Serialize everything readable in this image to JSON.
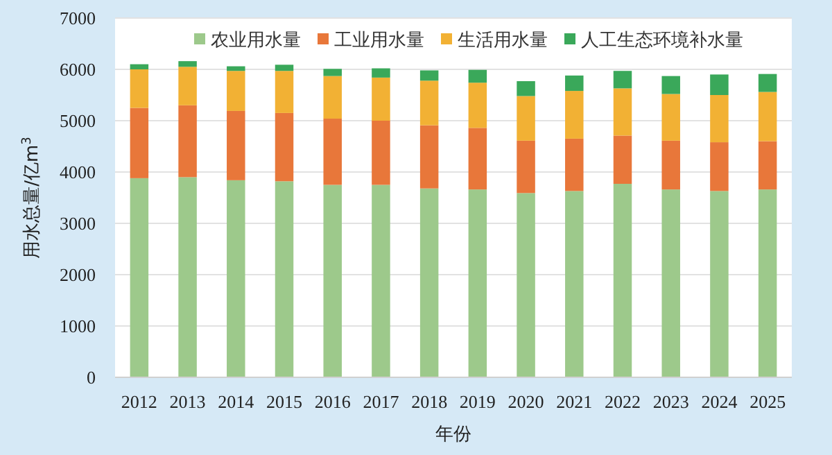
{
  "chart_data": {
    "type": "bar",
    "stacked": true,
    "xlabel": "年份",
    "ylabel": "用水总量/亿m$^{3}$",
    "categories": [
      "2012",
      "2013",
      "2014",
      "2015",
      "2016",
      "2017",
      "2018",
      "2019",
      "2020",
      "2021",
      "2022",
      "2023",
      "2024",
      "2025"
    ],
    "series": [
      {
        "name": "农业用水量",
        "color": "#9dc98b",
        "values": [
          3880,
          3900,
          3840,
          3820,
          3750,
          3750,
          3680,
          3660,
          3590,
          3630,
          3770,
          3660,
          3630,
          3660
        ]
      },
      {
        "name": "工业用水量",
        "color": "#e8773a",
        "values": [
          1370,
          1400,
          1350,
          1330,
          1290,
          1250,
          1230,
          1200,
          1020,
          1020,
          940,
          950,
          950,
          940
        ]
      },
      {
        "name": "生活用水量",
        "color": "#f2b134",
        "values": [
          750,
          750,
          780,
          820,
          830,
          840,
          870,
          880,
          870,
          930,
          920,
          910,
          920,
          960
        ]
      },
      {
        "name": "人工生态环境补水量",
        "color": "#3aa85a",
        "values": [
          100,
          110,
          90,
          120,
          140,
          180,
          200,
          250,
          290,
          300,
          340,
          350,
          400,
          350
        ]
      }
    ],
    "ylim": [
      0,
      7000
    ],
    "yticks": [
      0,
      1000,
      2000,
      3000,
      4000,
      5000,
      6000,
      7000
    ],
    "grid": "y",
    "legend": "top"
  }
}
